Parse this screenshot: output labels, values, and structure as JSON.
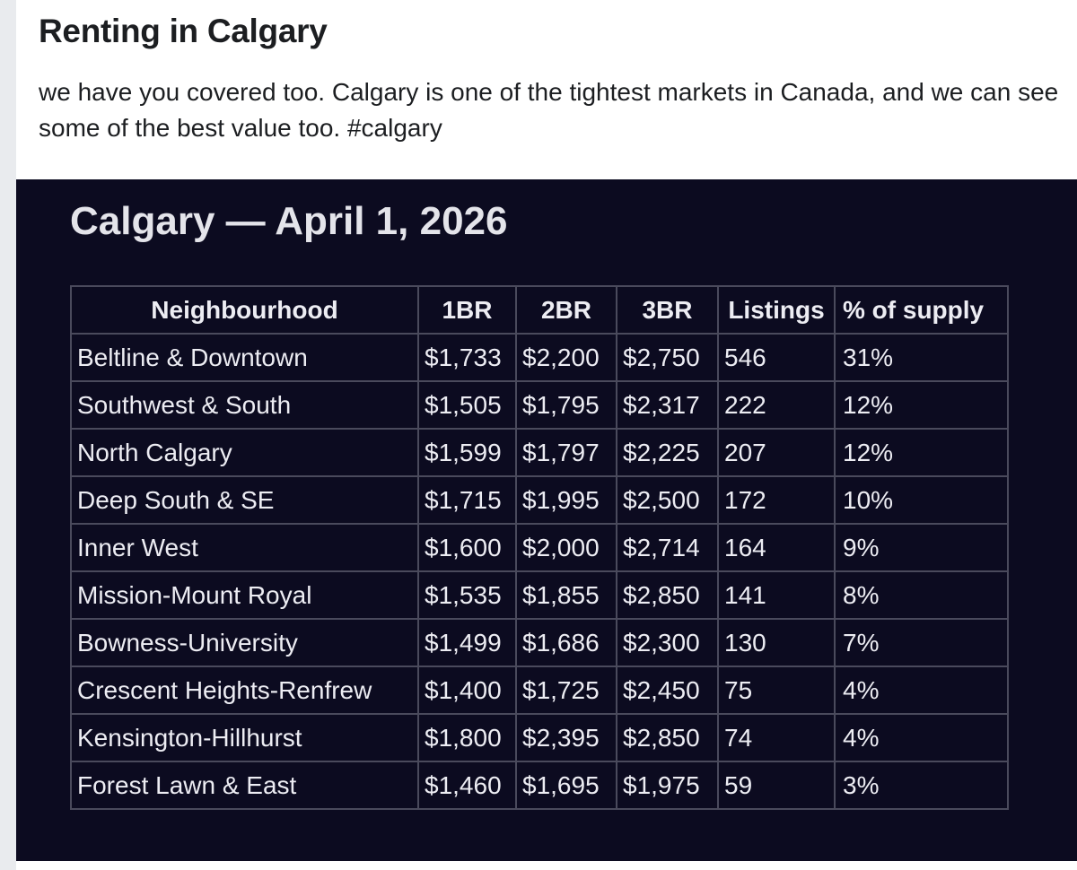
{
  "post": {
    "title": "Renting in Calgary",
    "body": "we have you covered too. Calgary is one of the tightest markets in Canada, and we can see some of the best value too. #calgary"
  },
  "image": {
    "title": "Calgary — April 1, 2026"
  },
  "table": {
    "headers": {
      "neighbourhood": "Neighbourhood",
      "br1": "1BR",
      "br2": "2BR",
      "br3": "3BR",
      "listings": "Listings",
      "supply": "% of supply"
    },
    "rows": [
      {
        "neighbourhood": "Beltline & Downtown",
        "br1": "$1,733",
        "br2": "$2,200",
        "br3": "$2,750",
        "listings": "546",
        "supply": "31%"
      },
      {
        "neighbourhood": "Southwest & South",
        "br1": "$1,505",
        "br2": "$1,795",
        "br3": "$2,317",
        "listings": "222",
        "supply": "12%"
      },
      {
        "neighbourhood": "North Calgary",
        "br1": "$1,599",
        "br2": "$1,797",
        "br3": "$2,225",
        "listings": "207",
        "supply": "12%"
      },
      {
        "neighbourhood": "Deep South & SE",
        "br1": "$1,715",
        "br2": "$1,995",
        "br3": "$2,500",
        "listings": "172",
        "supply": "10%"
      },
      {
        "neighbourhood": "Inner West",
        "br1": "$1,600",
        "br2": "$2,000",
        "br3": "$2,714",
        "listings": "164",
        "supply": "9%"
      },
      {
        "neighbourhood": "Mission-Mount Royal",
        "br1": "$1,535",
        "br2": "$1,855",
        "br3": "$2,850",
        "listings": "141",
        "supply": "8%"
      },
      {
        "neighbourhood": "Bowness-University",
        "br1": "$1,499",
        "br2": "$1,686",
        "br3": "$2,300",
        "listings": "130",
        "supply": "7%"
      },
      {
        "neighbourhood": "Crescent Heights-Renfrew",
        "br1": "$1,400",
        "br2": "$1,725",
        "br3": "$2,450",
        "listings": "75",
        "supply": "4%"
      },
      {
        "neighbourhood": "Kensington-Hillhurst",
        "br1": "$1,800",
        "br2": "$2,395",
        "br3": "$2,850",
        "listings": "74",
        "supply": "4%"
      },
      {
        "neighbourhood": "Forest Lawn & East",
        "br1": "$1,460",
        "br2": "$1,695",
        "br3": "$1,975",
        "listings": "59",
        "supply": "3%"
      }
    ]
  },
  "colors": {
    "page_background": "#e9ebee",
    "card_background": "#ffffff",
    "image_background": "#0c0b20",
    "table_border": "#4a4a5c",
    "table_text": "#ededf3"
  }
}
